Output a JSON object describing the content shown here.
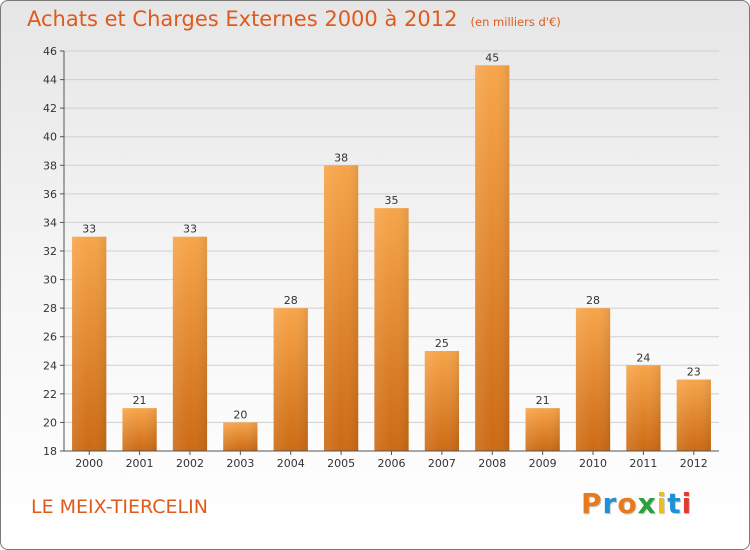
{
  "header": {
    "title": "Achats et Charges Externes 2000 à 2012",
    "subtitle": "(en milliers d'€)"
  },
  "footer": {
    "place": "LE MEIX-TIERCELIN",
    "brand": "Proxiti",
    "brand_colors": [
      "#e87a1e",
      "#1f8fd6",
      "#e87a1e",
      "#2aa13a",
      "#e7c01e",
      "#1f8fd6",
      "#e23a2f"
    ]
  },
  "colors": {
    "bar_top": "#f7a54a",
    "bar_bottom": "#cc6a14",
    "accent": "#e05a1a",
    "grid": "#cfcfcf",
    "axis": "#555555"
  },
  "chart_data": {
    "type": "bar",
    "title": "Achats et Charges Externes 2000 à 2012",
    "subtitle": "(en milliers d'€)",
    "categories": [
      "2000",
      "2001",
      "2002",
      "2003",
      "2004",
      "2005",
      "2006",
      "2007",
      "2008",
      "2009",
      "2010",
      "2011",
      "2012"
    ],
    "values": [
      33,
      21,
      33,
      20,
      28,
      38,
      35,
      25,
      45,
      21,
      28,
      24,
      23
    ],
    "ylim": [
      18,
      46
    ],
    "yticks": [
      "18",
      "20",
      "22",
      "24",
      "26",
      "28",
      "30",
      "32",
      "34",
      "36",
      "38",
      "40",
      "42",
      "44",
      "46"
    ],
    "grid": true,
    "data_labels": true
  }
}
